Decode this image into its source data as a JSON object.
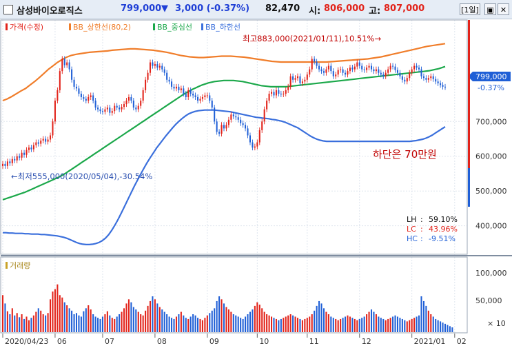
{
  "header": {
    "name": "삼성바이오로직스",
    "price": "799,000",
    "arrow": "▼",
    "change": "3,000 (-0.37%)",
    "volume": "82,470",
    "open_label": "시:",
    "open": "806,000",
    "high_label": "고:",
    "high": "807,000",
    "period": "[1일]"
  },
  "legend": {
    "price": "가격(수정)",
    "bb_upper": "BB_상한선(80,2)",
    "bb_mid": "BB_중심선",
    "bb_lower": "BB_하한선",
    "volume": "거래량"
  },
  "annotations": {
    "high": "최고883,000(2021/01/11),10.51%→",
    "low": "←최저555,000(2020/05/04),-30.54%",
    "note": "하단은 70만원"
  },
  "stats": {
    "lh_label": "LH",
    "lh": "59.10%",
    "lc_label": "LC",
    "lc": "43.96%",
    "hc_label": "HC",
    "hc": "-9.51%"
  },
  "current": {
    "price": "799,000",
    "pct": "-0.37%"
  },
  "colors": {
    "up": "#e2231a",
    "down": "#1f5fd6",
    "upper": "#f07d2a",
    "mid": "#1ba84a",
    "lower": "#3a6fdc",
    "accent": "#c00000"
  },
  "chart_data": {
    "type": "line",
    "x_ticks": [
      "2020/04/23",
      "06",
      "07",
      "08",
      "09",
      "10",
      "11",
      "12",
      "2021/01",
      "02"
    ],
    "x_tick_index": [
      0,
      22,
      42,
      64,
      86,
      107,
      128,
      150,
      172,
      190
    ],
    "y_ticks": [
      "700,000",
      "600,000",
      "500,000",
      "400,000"
    ],
    "y_tick_values": [
      700000,
      600000,
      500000,
      400000
    ],
    "ylim": [
      320000,
      990000
    ],
    "price": [
      578,
      572,
      585,
      580,
      592,
      588,
      600,
      596,
      610,
      604,
      618,
      625,
      620,
      632,
      640,
      636,
      645,
      650,
      642,
      648,
      660,
      700,
      760,
      790,
      845,
      880,
      862,
      870,
      850,
      820,
      800,
      795,
      780,
      770,
      765,
      760,
      770,
      775,
      760,
      740,
      735,
      730,
      728,
      735,
      740,
      725,
      730,
      745,
      740,
      735,
      742,
      750,
      760,
      770,
      760,
      740,
      735,
      745,
      760,
      790,
      820,
      840,
      870,
      860,
      865,
      855,
      860,
      850,
      840,
      820,
      815,
      800,
      795,
      800,
      790,
      795,
      780,
      770,
      790,
      780,
      775,
      770,
      760,
      765,
      770,
      775,
      775,
      760,
      740,
      700,
      670,
      665,
      690,
      680,
      690,
      705,
      720,
      715,
      712,
      705,
      695,
      690,
      680,
      660,
      640,
      625,
      628,
      640,
      675,
      700,
      735,
      760,
      780,
      785,
      775,
      790,
      780,
      778,
      780,
      790,
      800,
      830,
      820,
      825,
      830,
      810,
      815,
      820,
      835,
      850,
      880,
      872,
      860,
      850,
      845,
      840,
      850,
      860,
      845,
      830,
      835,
      848,
      850,
      840,
      835,
      845,
      855,
      850,
      858,
      870,
      860,
      850,
      848,
      855,
      860,
      850,
      845,
      850,
      840,
      835,
      830,
      840,
      850,
      860,
      858,
      848,
      840,
      830,
      820,
      815,
      825,
      840,
      850,
      860,
      855,
      850,
      830,
      825,
      820,
      825,
      830,
      822,
      815,
      810,
      805,
      800,
      799
    ],
    "bb_upper": [
      760,
      765,
      772,
      780,
      788,
      795,
      805,
      815,
      826,
      838,
      850,
      860,
      870,
      878,
      885,
      890,
      893,
      895,
      897,
      899,
      900,
      901,
      902,
      903,
      905,
      906,
      907,
      908,
      909,
      909,
      908,
      907,
      906,
      905,
      903,
      901,
      899,
      896,
      893,
      890,
      888,
      886,
      885,
      884,
      884,
      885,
      886,
      887,
      888,
      888,
      888,
      887,
      886,
      885,
      883,
      881,
      879,
      877,
      875,
      873,
      872,
      871,
      871,
      871,
      871,
      871,
      871,
      871,
      871,
      871,
      871,
      871,
      872,
      873,
      874,
      875,
      876,
      877,
      878,
      879,
      880,
      882,
      884,
      886,
      889,
      892,
      895,
      898,
      901,
      904,
      907,
      910,
      913,
      916,
      918,
      920,
      922,
      924
    ],
    "bb_mid": [
      475,
      478,
      481,
      484,
      487,
      490,
      493,
      496,
      500,
      504,
      508,
      512,
      516,
      520,
      524,
      528,
      532,
      536,
      540,
      545,
      550,
      556,
      562,
      568,
      574,
      580,
      586,
      592,
      598,
      604,
      610,
      616,
      622,
      628,
      634,
      640,
      646,
      652,
      658,
      664,
      670,
      676,
      682,
      688,
      694,
      700,
      706,
      712,
      718,
      724,
      730,
      736,
      742,
      748,
      754,
      760,
      766,
      772,
      778,
      783,
      788,
      793,
      797,
      801,
      805,
      808,
      811,
      813,
      815,
      816,
      817,
      818,
      818,
      818,
      818,
      817,
      816,
      815,
      813,
      811,
      809,
      807,
      805,
      803,
      802,
      801,
      800,
      800,
      800,
      800,
      800,
      800,
      801,
      802,
      803,
      804,
      805,
      806,
      807,
      808,
      809,
      810,
      811,
      812,
      813,
      814,
      815,
      816,
      817,
      818,
      819,
      820,
      821,
      822,
      823,
      824,
      825,
      826,
      827,
      828,
      829,
      830,
      831,
      832,
      833,
      834,
      835,
      836,
      837,
      838,
      839,
      840,
      841,
      842,
      843,
      844,
      845,
      846,
      848,
      850,
      852,
      855,
      858
    ],
    "bb_lower": [
      380,
      380,
      379,
      379,
      378,
      378,
      378,
      377,
      377,
      376,
      376,
      376,
      375,
      375,
      374,
      373,
      372,
      371,
      369,
      367,
      364,
      360,
      356,
      352,
      349,
      347,
      346,
      346,
      347,
      349,
      352,
      357,
      364,
      374,
      387,
      402,
      419,
      437,
      456,
      475,
      494,
      513,
      531,
      548,
      565,
      581,
      596,
      610,
      624,
      636,
      648,
      660,
      671,
      682,
      692,
      701,
      709,
      716,
      722,
      726,
      729,
      731,
      732,
      733,
      733,
      733,
      733,
      732,
      731,
      730,
      729,
      728,
      726,
      724,
      722,
      720,
      718,
      716,
      714,
      712,
      711,
      710,
      709,
      708,
      706,
      705,
      703,
      701,
      698,
      694,
      690,
      686,
      682,
      676,
      670,
      664,
      658,
      653,
      649,
      646,
      644,
      643,
      643,
      643,
      643,
      643,
      643,
      643,
      643,
      643,
      643,
      643,
      643,
      643,
      643,
      643,
      643,
      643,
      643,
      643,
      643,
      643,
      643,
      643,
      643,
      643,
      643,
      643,
      644,
      645,
      647,
      649,
      652,
      656,
      661,
      667,
      673,
      679,
      685
    ],
    "volume": [
      62,
      48,
      35,
      30,
      40,
      28,
      32,
      25,
      30,
      22,
      26,
      20,
      24,
      28,
      34,
      40,
      36,
      30,
      28,
      32,
      55,
      68,
      72,
      80,
      62,
      58,
      50,
      45,
      40,
      36,
      30,
      32,
      28,
      26,
      35,
      40,
      45,
      38,
      30,
      26,
      24,
      22,
      26,
      30,
      35,
      28,
      24,
      22,
      26,
      30,
      34,
      40,
      48,
      55,
      50,
      42,
      38,
      34,
      30,
      28,
      36,
      44,
      52,
      60,
      55,
      48,
      42,
      38,
      34,
      30,
      26,
      24,
      22,
      26,
      30,
      34,
      28,
      24,
      22,
      26,
      30,
      28,
      24,
      22,
      20,
      24,
      28,
      32,
      36,
      40,
      52,
      60,
      55,
      48,
      42,
      38,
      34,
      30,
      28,
      26,
      24,
      22,
      26,
      30,
      34,
      38,
      44,
      50,
      46,
      40,
      34,
      30,
      28,
      26,
      24,
      22,
      20,
      22,
      24,
      26,
      28,
      30,
      28,
      26,
      24,
      22,
      20,
      22,
      24,
      26,
      30,
      36,
      44,
      52,
      48,
      40,
      34,
      30,
      26,
      24,
      22,
      20,
      22,
      24,
      26,
      28,
      26,
      24,
      22,
      20,
      22,
      24,
      26,
      30,
      34,
      38,
      34,
      30,
      26,
      24,
      22,
      20,
      22,
      24,
      26,
      28,
      26,
      24,
      22,
      20,
      18,
      20,
      22,
      24,
      26,
      28,
      60,
      52,
      44,
      36,
      30,
      26,
      22,
      20,
      18,
      16,
      14,
      12,
      10,
      8
    ],
    "volume_ticks": [
      "100,000",
      "50,000",
      "× 10"
    ]
  }
}
